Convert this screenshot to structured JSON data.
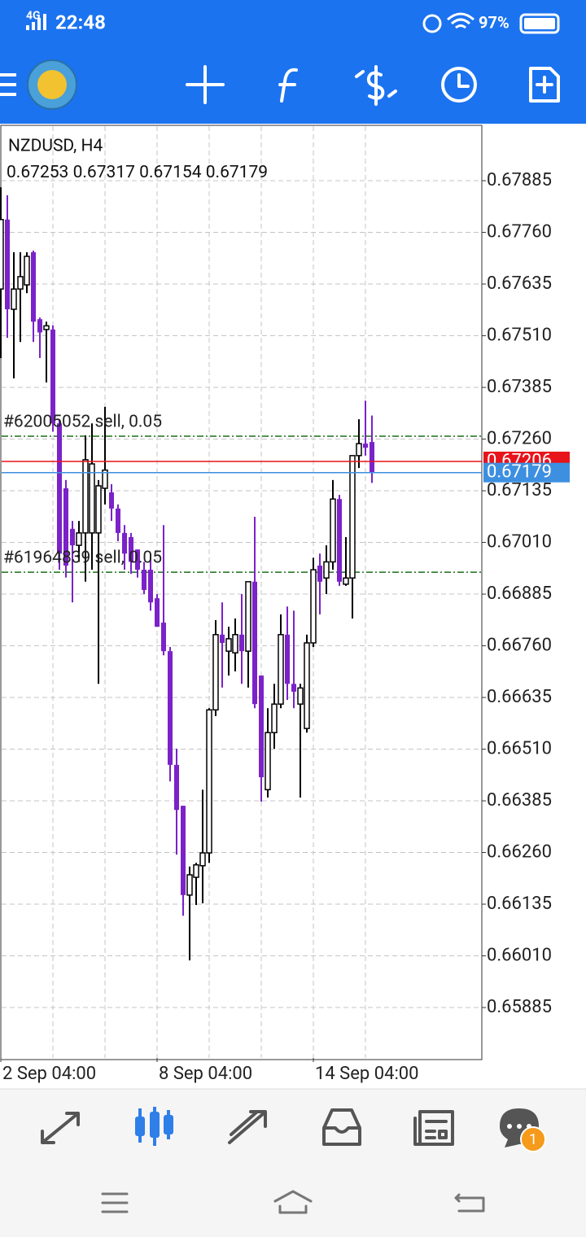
{
  "status_bar": {
    "network": "4G",
    "time": "22:48",
    "battery": "97%"
  },
  "chart_data": {
    "type": "candlestick",
    "title": "NZDUSD, H4",
    "categories": [
      "2 Sep 04:00",
      null,
      null,
      null,
      null,
      null,
      null,
      null,
      null,
      null,
      null,
      null,
      null,
      null,
      null,
      null,
      null,
      null,
      null,
      null,
      null,
      null,
      null,
      null,
      "8 Sep 04:00",
      null,
      null,
      null,
      null,
      null,
      null,
      null,
      null,
      null,
      null,
      null,
      null,
      null,
      null,
      null,
      null,
      null,
      null,
      null,
      null,
      null,
      null,
      null,
      "14 Sep 04:00",
      null,
      null,
      null,
      null,
      null,
      null,
      null,
      null,
      null
    ],
    "open": [
      0.67623,
      0.67791,
      0.67574,
      0.67623,
      0.67633,
      0.67712,
      0.6755,
      0.67525,
      0.67525,
      0.67298,
      0.67141,
      0.67043,
      0.67003,
      0.67033,
      0.67033,
      0.67033,
      0.67141,
      0.67131,
      0.67092,
      0.67033,
      0.67023,
      0.66993,
      0.66944,
      0.66944,
      0.66875,
      0.66816,
      0.66747,
      0.66472,
      0.66373,
      0.66157,
      0.662,
      0.66228,
      0.66259,
      0.66605,
      0.66787,
      0.66747,
      0.66743,
      0.66787,
      0.66747,
      0.66915,
      0.66688,
      0.66412,
      0.6655,
      0.66619,
      0.66787,
      0.66668,
      0.66619,
      0.6656,
      0.66767,
      0.66954,
      0.66924,
      0.66963,
      0.67115,
      0.66909,
      0.66924,
      0.6722,
      0.67249,
      0.67253
    ],
    "high": [
      0.67869,
      0.6785,
      0.67712,
      0.67712,
      0.67712,
      0.67716,
      0.67554,
      0.67544,
      0.67535,
      0.67308,
      0.67161,
      0.67062,
      0.67062,
      0.67269,
      0.67298,
      0.67161,
      0.67338,
      0.67151,
      0.67102,
      0.67052,
      0.67033,
      0.66993,
      0.66963,
      0.66983,
      0.66885,
      0.67052,
      0.66757,
      0.66511,
      0.66373,
      0.66226,
      0.66235,
      0.66412,
      0.66609,
      0.66822,
      0.66865,
      0.66806,
      0.66826,
      0.66885,
      0.66915,
      0.67072,
      0.66688,
      0.66609,
      0.66668,
      0.66836,
      0.66855,
      0.66845,
      0.66668,
      0.66787,
      0.66973,
      0.66983,
      0.67003,
      0.67161,
      0.67125,
      0.67023,
      0.6722,
      0.67308,
      0.67353,
      0.67317
    ],
    "low": [
      0.67456,
      0.67505,
      0.67407,
      0.67495,
      0.67613,
      0.67495,
      0.67456,
      0.67397,
      0.67278,
      0.66944,
      0.66925,
      0.66865,
      0.66963,
      0.66915,
      0.66944,
      0.66668,
      0.67102,
      0.67062,
      0.67013,
      0.66944,
      0.66934,
      0.66925,
      0.66885,
      0.66845,
      0.66806,
      0.66737,
      0.66432,
      0.66255,
      0.66107,
      0.65999,
      0.66133,
      0.66137,
      0.66235,
      0.6659,
      0.66659,
      0.66688,
      0.66698,
      0.66668,
      0.66659,
      0.66609,
      0.66383,
      0.66393,
      0.66511,
      0.66609,
      0.66629,
      0.66609,
      0.66393,
      0.6655,
      0.66757,
      0.66836,
      0.66885,
      0.66944,
      0.66905,
      0.66905,
      0.66826,
      0.6719,
      0.6722,
      0.67154
    ],
    "close": [
      0.67791,
      0.67574,
      0.67623,
      0.67653,
      0.67702,
      0.67544,
      0.67518,
      0.67534,
      0.67298,
      0.66983,
      0.66954,
      0.67003,
      0.67033,
      0.6721,
      0.672,
      0.67147,
      0.67185,
      0.67092,
      0.67033,
      0.66983,
      0.66963,
      0.66944,
      0.66895,
      0.66865,
      0.66806,
      0.66747,
      0.66472,
      0.66363,
      0.66157,
      0.66206,
      0.6623,
      0.66259,
      0.66605,
      0.66787,
      0.66767,
      0.66777,
      0.66787,
      0.66747,
      0.66915,
      0.66619,
      0.66442,
      0.6655,
      0.66619,
      0.66787,
      0.66668,
      0.66649,
      0.66658,
      0.66767,
      0.66944,
      0.66915,
      0.66963,
      0.67115,
      0.66915,
      0.66924,
      0.6722,
      0.67249,
      0.67239,
      0.67179
    ],
    "up_color": "#000000",
    "down_color": "#7b22c9",
    "ylim": [
      0.65763,
      0.68017
    ],
    "yticks": [
      0.67885,
      {
        "value": 0.6776,
        "label": "0.67760"
      },
      0.67635,
      {
        "value": 0.6751,
        "label": "0.67510"
      },
      0.67385,
      {
        "value": 0.6726,
        "label": "0.67260"
      },
      0.67135,
      {
        "value": 0.6701,
        "label": "0.67010"
      },
      0.66885,
      {
        "value": 0.6676,
        "label": "0.66760"
      },
      0.66635,
      {
        "value": 0.6651,
        "label": "0.66510"
      },
      0.66385,
      {
        "value": 0.6626,
        "label": "0.66260"
      },
      0.66135,
      {
        "value": 0.6601,
        "label": "0.66010"
      },
      0.65885
    ],
    "grid": true,
    "orders": [
      {
        "label": "#62005052 sell, 0.05",
        "price": 0.67267,
        "color": "#1a6e1a"
      },
      {
        "label": "#61964839 sell, 0.05",
        "price": 0.66938,
        "color": "#1a6e1a"
      }
    ],
    "ask": 0.67206,
    "ask_color": "#e8141c",
    "bid_color": "#3d8fe0"
  },
  "notifications": {
    "badge": 1
  }
}
